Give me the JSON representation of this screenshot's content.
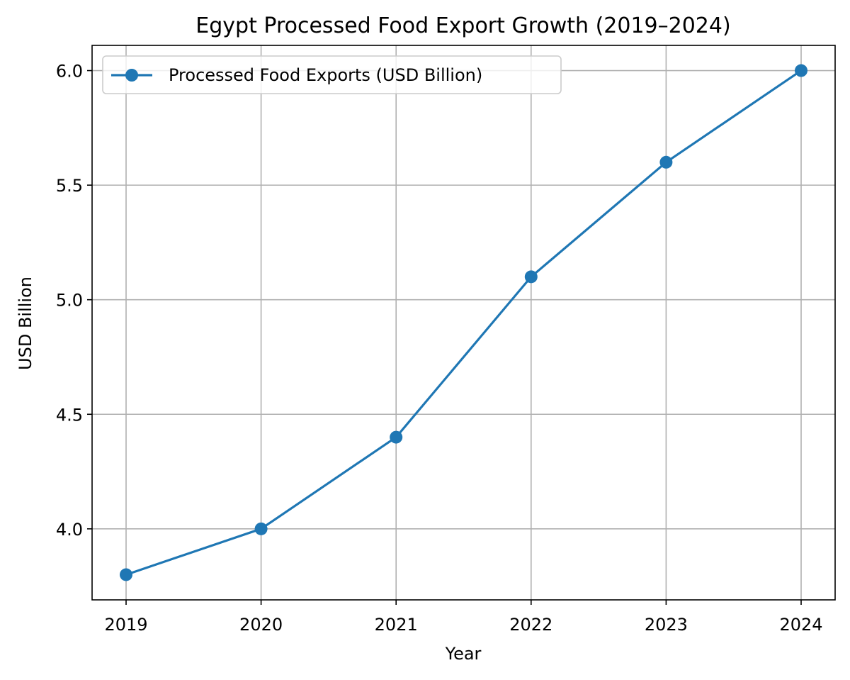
{
  "chart_data": {
    "type": "line",
    "title": "Egypt Processed Food Export Growth (2019–2024)",
    "xlabel": "Year",
    "ylabel": "USD Billion",
    "categories": [
      "2019",
      "2020",
      "2021",
      "2022",
      "2023",
      "2024"
    ],
    "yticks": [
      "4.0",
      "4.5",
      "5.0",
      "5.5",
      "6.0"
    ],
    "ylim": [
      3.69,
      6.11
    ],
    "grid": true,
    "legend_position": "upper-left",
    "series": [
      {
        "name": "Processed Food Exports (USD Billion)",
        "color": "#1f77b4",
        "marker": "circle",
        "values": [
          3.8,
          4.0,
          4.4,
          5.1,
          5.6,
          6.0
        ]
      }
    ]
  }
}
